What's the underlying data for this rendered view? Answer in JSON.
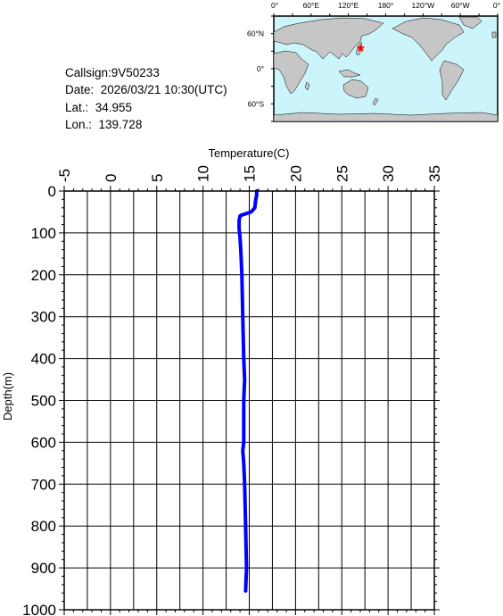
{
  "info": {
    "callsign": "Callsign:9V50233",
    "date": "Date:  2026/03/21 10:30(UTC)",
    "lat": "Lat.:  34.955",
    "lon": "Lon.:  139.728"
  },
  "map": {
    "lon_labels": [
      "0°",
      "60°E",
      "120°E",
      "180°",
      "120°W",
      "60°W",
      "0°"
    ],
    "lat_labels": [
      "60°N",
      "0°",
      "60°S"
    ],
    "station": {
      "lat": 34.955,
      "lon": 139.728
    },
    "colors": {
      "ocean": "#ccf4fb",
      "land": "#c6c6c6",
      "marker": "#ff0000"
    }
  },
  "chart_data": {
    "type": "line",
    "xlabel": "Temperature(C)",
    "ylabel": "Depth(m)",
    "xlim": [
      -5,
      35
    ],
    "ylim": [
      0,
      1000
    ],
    "y_inverted": true,
    "x_ticks": [
      "-5",
      "0",
      "5",
      "10",
      "15",
      "20",
      "25",
      "30",
      "35"
    ],
    "y_ticks": [
      "0",
      "100",
      "200",
      "300",
      "400",
      "500",
      "600",
      "700",
      "800",
      "900",
      "1000"
    ],
    "grid": true,
    "series": [
      {
        "color": "#0000ff",
        "points": [
          {
            "t": 15.8,
            "d": 0
          },
          {
            "t": 15.8,
            "d": 10
          },
          {
            "t": 15.7,
            "d": 20
          },
          {
            "t": 15.6,
            "d": 40
          },
          {
            "t": 15.2,
            "d": 50
          },
          {
            "t": 14.5,
            "d": 55
          },
          {
            "t": 14.1,
            "d": 58
          },
          {
            "t": 14.0,
            "d": 60
          },
          {
            "t": 13.9,
            "d": 70
          },
          {
            "t": 13.9,
            "d": 90
          },
          {
            "t": 14.0,
            "d": 110
          },
          {
            "t": 14.1,
            "d": 150
          },
          {
            "t": 14.2,
            "d": 200
          },
          {
            "t": 14.3,
            "d": 300
          },
          {
            "t": 14.4,
            "d": 400
          },
          {
            "t": 14.5,
            "d": 450
          },
          {
            "t": 14.4,
            "d": 500
          },
          {
            "t": 14.4,
            "d": 600
          },
          {
            "t": 14.3,
            "d": 620
          },
          {
            "t": 14.4,
            "d": 650
          },
          {
            "t": 14.5,
            "d": 700
          },
          {
            "t": 14.6,
            "d": 800
          },
          {
            "t": 14.7,
            "d": 900
          },
          {
            "t": 14.6,
            "d": 955
          }
        ]
      }
    ]
  }
}
